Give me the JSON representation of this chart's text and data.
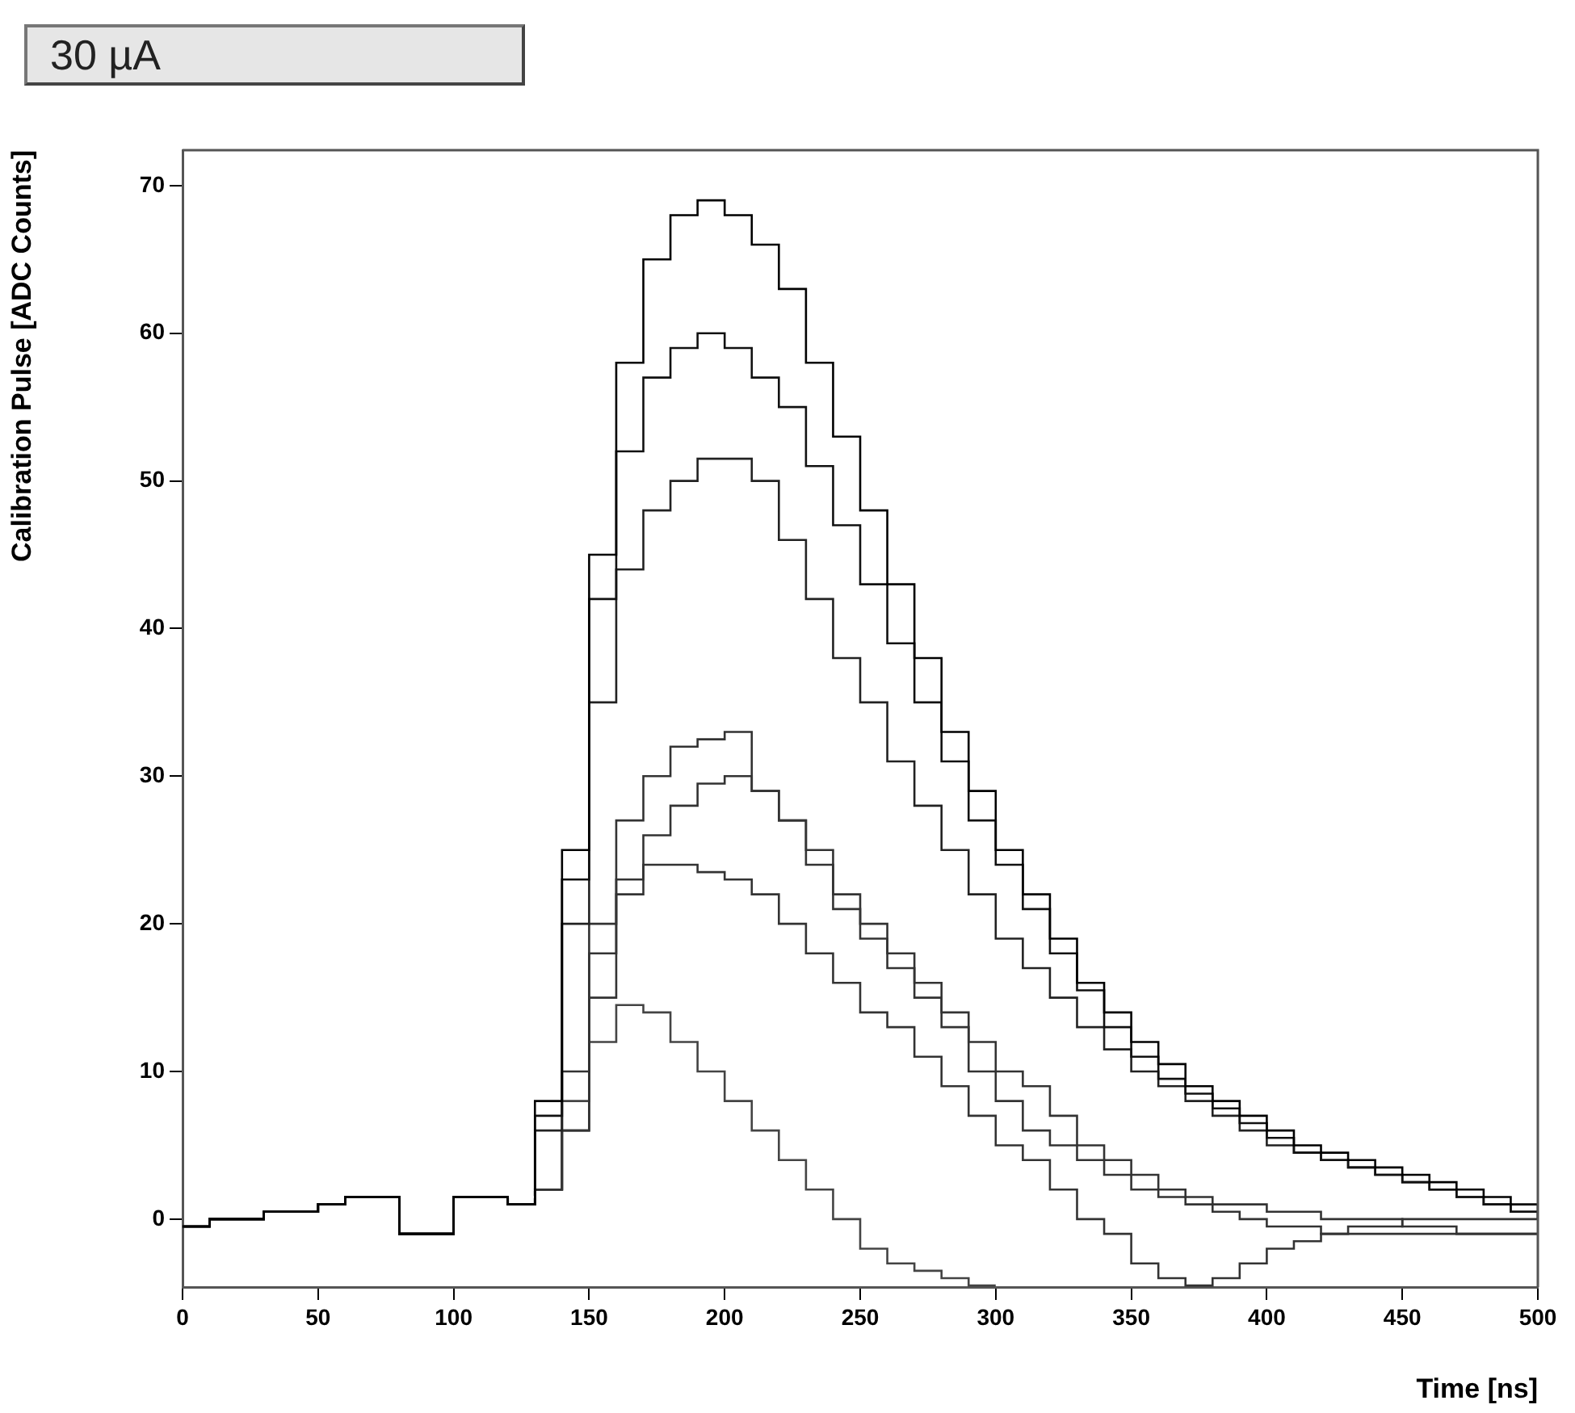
{
  "chart_data": {
    "type": "step",
    "xlabel": "Time [ns]",
    "ylabel": "Calibration Pulse [ADC Counts]",
    "annotations": [
      "30 µA"
    ],
    "xlim": [
      0,
      500
    ],
    "ylim": [
      -4.6,
      72.4
    ],
    "xticks": [
      0,
      50,
      100,
      150,
      200,
      250,
      300,
      350,
      400,
      450,
      500
    ],
    "yticks": [
      0,
      10,
      20,
      30,
      40,
      50,
      60,
      70
    ],
    "x": [
      0,
      10,
      20,
      30,
      40,
      50,
      60,
      70,
      80,
      90,
      100,
      110,
      120,
      130,
      140,
      150,
      160,
      170,
      180,
      190,
      200,
      210,
      220,
      230,
      240,
      250,
      260,
      270,
      280,
      290,
      300,
      310,
      320,
      330,
      340,
      350,
      360,
      370,
      380,
      390,
      400,
      410,
      420,
      430,
      440,
      450,
      460,
      470,
      480,
      490,
      500
    ],
    "series": [
      {
        "color": "#000000",
        "values": [
          -0.5,
          0,
          0,
          0.5,
          0.5,
          1,
          1.5,
          1.5,
          -1,
          -1,
          1.5,
          1.5,
          1,
          8,
          25,
          45,
          58,
          65,
          68,
          69,
          68,
          66,
          63,
          58,
          53,
          48,
          43,
          38,
          33,
          29,
          25,
          22,
          19,
          16,
          14,
          12,
          10.5,
          9,
          8,
          7,
          6,
          5,
          4.5,
          4,
          3.5,
          3,
          2.5,
          2,
          1.5,
          1,
          0.5
        ]
      },
      {
        "color": "#111111",
        "values": [
          -0.5,
          0,
          0,
          0.5,
          0.5,
          1,
          1.5,
          1.5,
          -1,
          -1,
          1.5,
          1.5,
          1,
          7,
          23,
          42,
          52,
          57,
          59,
          60,
          59,
          57,
          55,
          51,
          47,
          43,
          39,
          35,
          31,
          27,
          24,
          21,
          18,
          15.5,
          13,
          11,
          9.5,
          8.5,
          7.5,
          6.5,
          5.5,
          4.5,
          4,
          3.5,
          3,
          2.5,
          2,
          1.5,
          1,
          0.5,
          0
        ]
      },
      {
        "color": "#222222",
        "values": [
          -0.5,
          0,
          0,
          0.5,
          0.5,
          1,
          1.5,
          1.5,
          -1,
          -1,
          1.5,
          1.5,
          1,
          6,
          20,
          35,
          44,
          48,
          50,
          51.5,
          51.5,
          50,
          46,
          42,
          38,
          35,
          31,
          28,
          25,
          22,
          19,
          17,
          15,
          13,
          11.5,
          10,
          9,
          8,
          7,
          6,
          5,
          4.5,
          4,
          3.5,
          3,
          2.5,
          2,
          1.5,
          1,
          0.5,
          0
        ]
      },
      {
        "color": "#333333",
        "values": [
          -0.5,
          0,
          0,
          0.5,
          0.5,
          1,
          1.5,
          1.5,
          -1,
          -1,
          1.5,
          1.5,
          1,
          2,
          10,
          20,
          27,
          30,
          32,
          32.5,
          33,
          29,
          27,
          25,
          22,
          20,
          18,
          16,
          14,
          12,
          10,
          9,
          7,
          5,
          4,
          3,
          2,
          1.5,
          1,
          1,
          0.5,
          0.5,
          0,
          0,
          0,
          -0.5,
          -0.5,
          -1,
          -1,
          -1,
          -1
        ]
      },
      {
        "color": "#333333",
        "values": [
          -0.5,
          0,
          0,
          0.5,
          0.5,
          1,
          1.5,
          1.5,
          -1,
          -1,
          1.5,
          1.5,
          1,
          2,
          6,
          15,
          22,
          26,
          28,
          29.5,
          30,
          29,
          27,
          24,
          21,
          19,
          17,
          15,
          13,
          10,
          8,
          6,
          5,
          4,
          3,
          2,
          1.5,
          1,
          0.5,
          0,
          -0.5,
          -0.5,
          -1,
          -1,
          -1,
          -1,
          -1,
          -1,
          -1,
          -1,
          -1
        ]
      },
      {
        "color": "#333333",
        "values": [
          -0.5,
          0,
          0,
          0.5,
          0.5,
          1,
          1.5,
          1.5,
          -1,
          -1,
          1.5,
          1.5,
          1,
          2,
          6,
          18,
          23,
          24,
          24,
          23.5,
          23,
          22,
          20,
          18,
          16,
          14,
          13,
          11,
          9,
          7,
          5,
          4,
          2,
          0,
          -1,
          -3,
          -4,
          -4.5,
          -4,
          -3,
          -2,
          -1.5,
          -1,
          -0.5,
          -0.5,
          0,
          0,
          0,
          0,
          0,
          0
        ]
      },
      {
        "color": "#444444",
        "values": [
          -0.5,
          0,
          0,
          0.5,
          0.5,
          1,
          1.5,
          1.5,
          -1,
          -1,
          1.5,
          1.5,
          1,
          2,
          8,
          12,
          14.5,
          14,
          12,
          10,
          8,
          6,
          4,
          2,
          0,
          -2,
          -3,
          -3.5,
          -4,
          -4.5,
          -4.5,
          null,
          null,
          null,
          null,
          null,
          null,
          null,
          null,
          null,
          null,
          null,
          null,
          null,
          null,
          null,
          null,
          null,
          null,
          null,
          null
        ]
      }
    ]
  }
}
